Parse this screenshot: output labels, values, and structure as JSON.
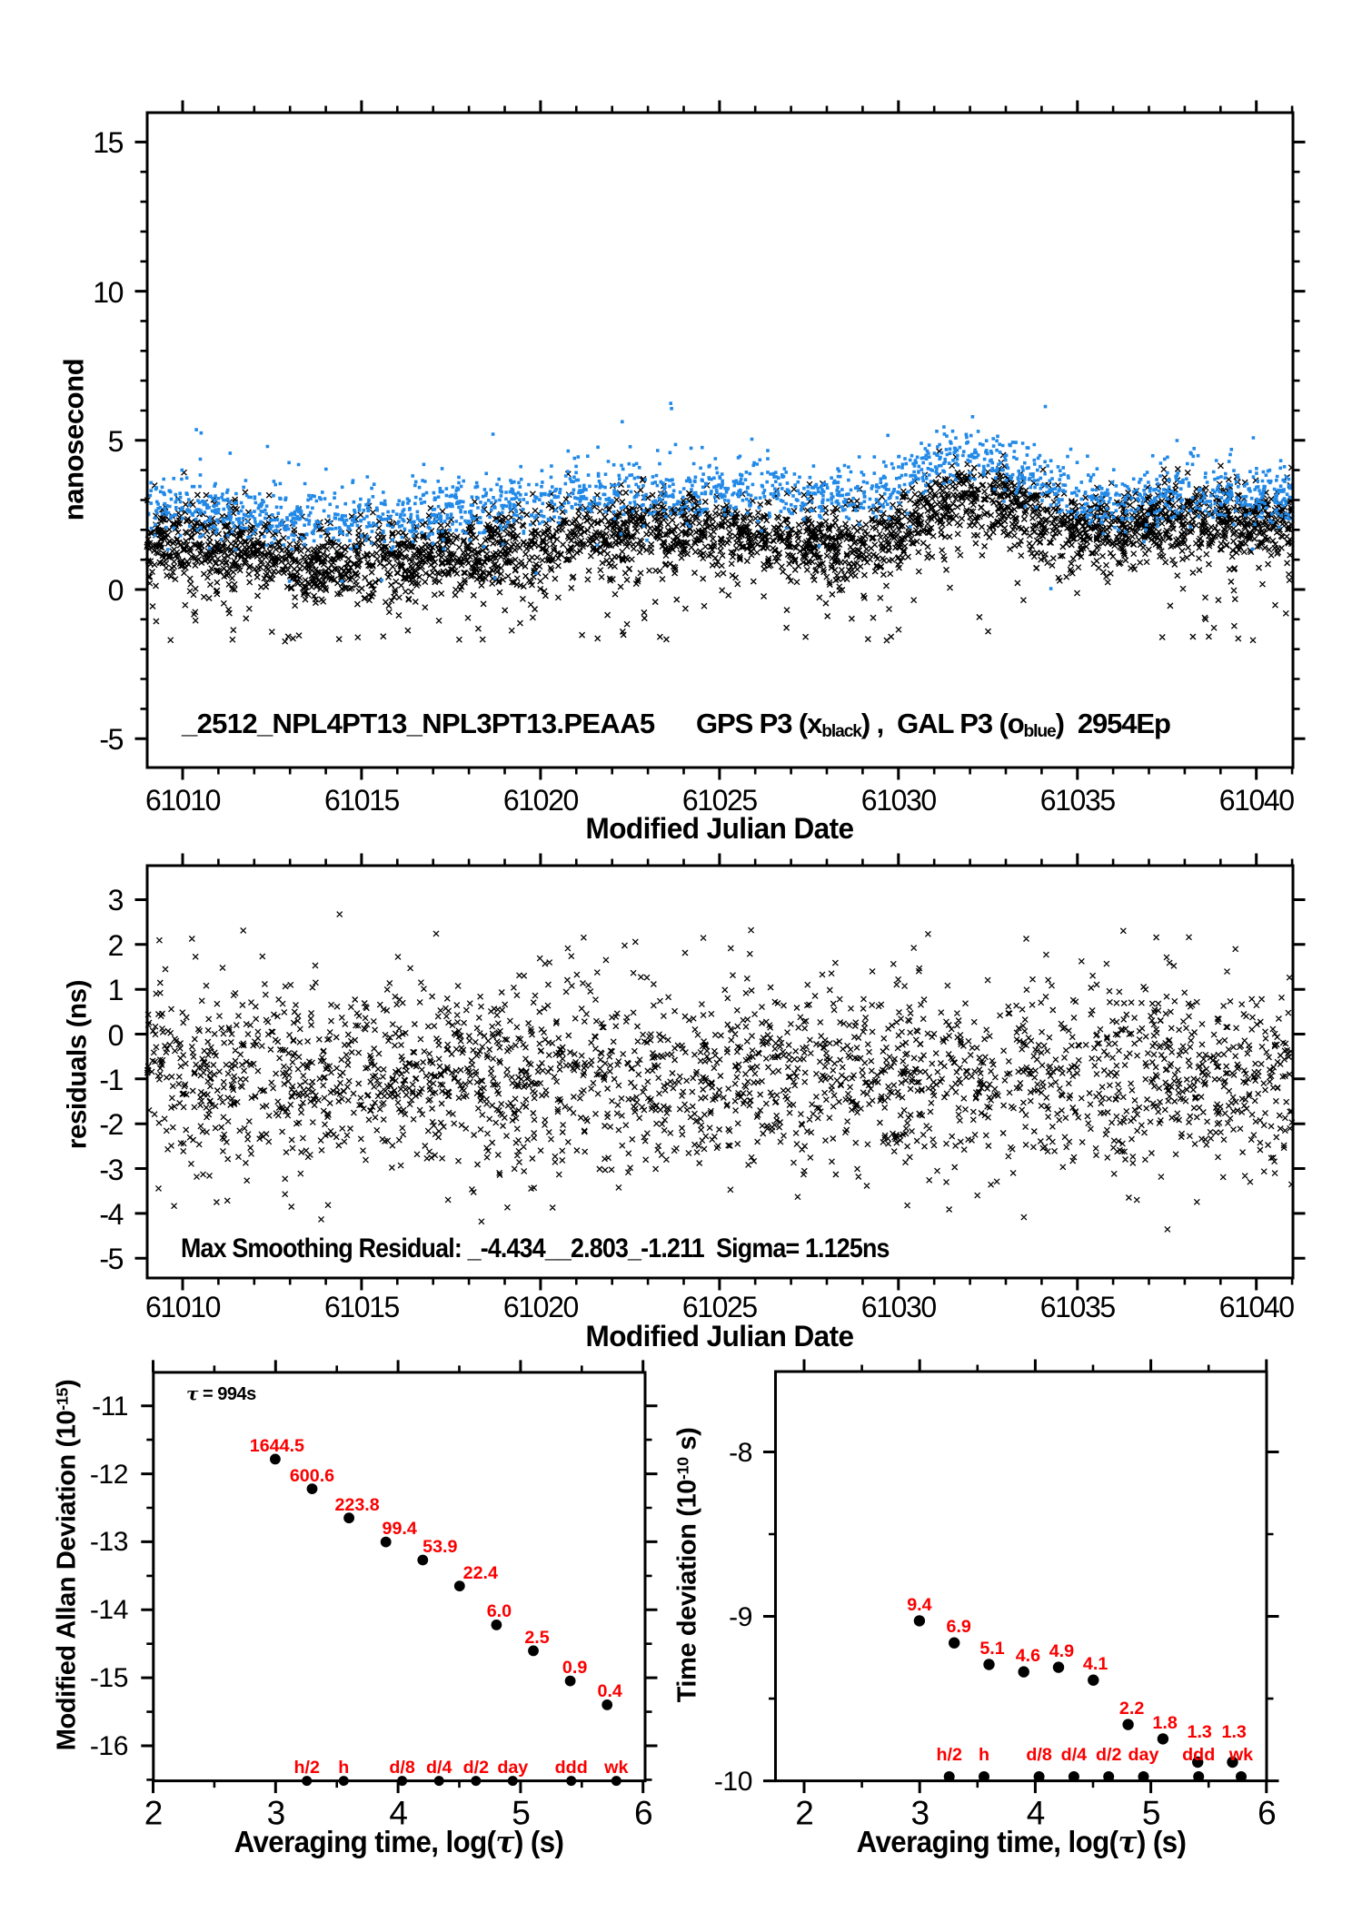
{
  "figure": {
    "background": "#ffffff",
    "axis_color": "#000000",
    "marker_black": "#000000",
    "marker_blue": "#2189e8",
    "label_red": "#fa0000"
  },
  "top_panel": {
    "ylabel": "nanosecond",
    "xlabel": "Modified Julian Date",
    "title_file": "_2512_NPL4PT13_NPL3PT13.PEAA5",
    "legend_segments": [
      {
        "t": "GPS P3 (x"
      },
      {
        "t": "black",
        "sub": true
      },
      {
        "t": ") ,  GAL P3 (o"
      },
      {
        "t": "blue",
        "sub": true
      },
      {
        "t": ")  2954Ep"
      }
    ],
    "x_tick_labels": [
      "61010",
      "61015",
      "61020",
      "61025",
      "61030",
      "61035",
      "61040"
    ],
    "y_tick_labels": [
      "15",
      "10",
      "5",
      "0",
      "-5"
    ]
  },
  "residual_panel": {
    "ylabel": "residuals (ns)",
    "xlabel": "Modified Julian Date",
    "annotation": "Max Smoothing Residual: _-4.434__2.803_-1.211  Sigma= 1.125ns",
    "x_tick_labels": [
      "61010",
      "61015",
      "61020",
      "61025",
      "61030",
      "61035",
      "61040"
    ],
    "y_tick_labels": [
      "3",
      "2",
      "1",
      "0",
      "-1",
      "-2",
      "-3",
      "-4",
      "-5"
    ]
  },
  "mdev_panel": {
    "ylabel_segments": [
      {
        "t": "Modified Allan Deviation (10"
      },
      {
        "t": "-15",
        "sup": true
      },
      {
        "t": ")"
      }
    ],
    "xlabel": "Averaging time, log(τ) (s)",
    "annotation": "τ = 994s",
    "x_tick_labels": [
      "2",
      "3",
      "4",
      "5",
      "6"
    ],
    "y_tick_labels": [
      "-11",
      "-12",
      "-13",
      "-14",
      "-15",
      "-16"
    ]
  },
  "tdev_panel": {
    "ylabel_segments": [
      {
        "t": "Time deviation (10"
      },
      {
        "t": "-10",
        "sup": true
      },
      {
        "t": " s)"
      }
    ],
    "xlabel": "Averaging time, log(τ) (s)",
    "x_tick_labels": [
      "2",
      "3",
      "4",
      "5",
      "6"
    ],
    "y_tick_labels": [
      "-8",
      "-9",
      "-10"
    ]
  },
  "chart_data": [
    {
      "id": "gnss-link-time-series",
      "type": "scatter",
      "title": "_2512_NPL4PT13_NPL3PT13.PEAA5   GPS P3 (x black) , GAL P3 (o blue) 2954Ep",
      "xlabel": "Modified Julian Date",
      "ylabel": "nanosecond",
      "xlim": [
        61009,
        61041
      ],
      "ylim": [
        -6,
        16
      ],
      "x_major_ticks": [
        61010,
        61015,
        61020,
        61025,
        61030,
        61035,
        61040
      ],
      "x_minor_step": 1,
      "y_major_ticks": [
        -5,
        0,
        5,
        10,
        15
      ],
      "y_minor_step": 1,
      "grid": false,
      "series": [
        {
          "name": "GPS P3",
          "marker": "x",
          "color": "#000000",
          "count": 3600,
          "seed": 20101,
          "trend_x_start": 61009,
          "trend_x_step": 1,
          "trend_y": [
            1.6,
            1.7,
            1.55,
            1.35,
            1.1,
            0.95,
            1.0,
            1.05,
            1.1,
            1.2,
            1.35,
            1.6,
            1.8,
            1.95,
            2.05,
            2.1,
            1.95,
            1.85,
            1.8,
            1.6,
            1.55,
            1.9,
            2.7,
            3.25,
            2.9,
            2.25,
            2.05,
            2.1,
            2.3,
            2.4,
            2.35,
            2.3,
            2.4
          ],
          "sigma": 0.6,
          "epoch_sigma": 0.2,
          "low_tail_prob": 0.2,
          "low_tail_scale": 0.85,
          "up_tail_prob": 0.03,
          "up_tail_scale": 0.5,
          "ymin_clip": -1.75,
          "ymax_clip": 6.1
        },
        {
          "name": "GAL P3",
          "marker": "o",
          "color": "#2189e8",
          "count": 2000,
          "seed": 30303,
          "trend_x_start": 61009,
          "trend_x_step": 1,
          "trend_y": [
            2.85,
            2.8,
            2.65,
            2.45,
            2.25,
            2.2,
            2.3,
            2.4,
            2.55,
            2.7,
            2.85,
            3.0,
            3.1,
            3.2,
            3.3,
            3.3,
            3.35,
            3.4,
            3.3,
            3.15,
            3.05,
            3.5,
            4.3,
            4.75,
            4.2,
            3.6,
            3.15,
            2.95,
            3.1,
            3.3,
            3.35,
            3.2,
            3.15
          ],
          "sigma": 0.45,
          "epoch_sigma": 0.18,
          "low_tail_prob": 0.06,
          "low_tail_scale": 0.5,
          "up_tail_prob": 0.14,
          "up_tail_scale": 0.55,
          "ymin_clip": -0.5,
          "ymax_clip": 6.25
        }
      ]
    },
    {
      "id": "smoothing-residuals",
      "type": "scatter",
      "title": "",
      "xlabel": "Modified Julian Date",
      "ylabel": "residuals (ns)",
      "xlim": [
        61009,
        61041
      ],
      "ylim": [
        -5.44,
        3.77
      ],
      "x_major_ticks": [
        61010,
        61015,
        61020,
        61025,
        61030,
        61035,
        61040
      ],
      "x_minor_step": 1,
      "y_major_ticks": [
        -5,
        -4,
        -3,
        -2,
        -1,
        0,
        1,
        2,
        3
      ],
      "grid": false,
      "stats": {
        "max_smoothing_residual": [
          -4.434,
          2.803,
          -1.211
        ],
        "sigma_ns": 1.125
      },
      "series": [
        {
          "name": "residuals",
          "marker": "x",
          "color": "#000000",
          "count": 2400,
          "seed": 40707,
          "mean": -0.95,
          "sigma": 1.06,
          "epoch_sigma": 0.18,
          "ymin_clip": -4.434,
          "ymax_clip": 2.803
        }
      ]
    },
    {
      "id": "modified-allan-deviation",
      "type": "scatter",
      "title": "",
      "xlabel": "Averaging time, log(τ) (s)",
      "ylabel": "Modified Allan Deviation (10^-15)",
      "xlim": [
        1.99,
        6.02
      ],
      "ylim": [
        -16.52,
        -10.51
      ],
      "x_major_ticks": [
        2,
        3,
        4,
        5,
        6
      ],
      "x_minor_step": 0.5,
      "y_major_ticks": [
        -16,
        -15,
        -14,
        -13,
        -12,
        -11
      ],
      "y_minor_step": 0.5,
      "annotation": "τ = 994s",
      "tau_base_seconds": 994,
      "log_tau": [
        2.99739,
        3.29842,
        3.59945,
        3.90048,
        4.20151,
        4.50254,
        4.80357,
        5.1046,
        5.40563,
        5.70666
      ],
      "mdev_1e-15": [
        1644.5,
        600.6,
        223.8,
        99.4,
        53.9,
        22.4,
        6.0,
        2.5,
        0.9,
        0.4
      ],
      "point_labels": [
        "1644.5",
        "600.6",
        "223.8",
        "99.4",
        "53.9",
        "22.4",
        "6.0",
        "2.5",
        "0.9",
        "0.4"
      ],
      "log10_values": [
        -11.784,
        -12.2214,
        -12.6501,
        -13.0026,
        -13.2684,
        -13.6498,
        -14.2218,
        -14.6021,
        -15.0458,
        -15.3979
      ],
      "label_dx": [
        2,
        0,
        9,
        15,
        19,
        23,
        3,
        4,
        5,
        3
      ],
      "label_dy": [
        -7,
        -7,
        -7,
        -7,
        -7,
        -7,
        -7,
        -7,
        -7,
        -7
      ],
      "tau_marks": {
        "labels": [
          "h/2",
          "h",
          "d/8",
          "d/4",
          "d/2",
          "day",
          "ddd",
          "wk"
        ],
        "log_tau": [
          3.2553,
          3.5563,
          4.0334,
          4.3345,
          4.6355,
          4.9365,
          5.4136,
          5.7816
        ]
      }
    },
    {
      "id": "time-deviation",
      "type": "scatter",
      "title": "",
      "xlabel": "Averaging time, log(τ) (s)",
      "ylabel": "Time deviation (10^-10 s)",
      "xlim": [
        1.76,
        6.0
      ],
      "ylim": [
        -10.0,
        -7.51
      ],
      "x_major_ticks": [
        2,
        3,
        4,
        5,
        6
      ],
      "x_minor_step": 0.5,
      "y_major_ticks": [
        -10,
        -9,
        -8
      ],
      "y_minor_step": 0.5,
      "log_tau": [
        2.99739,
        3.29842,
        3.59945,
        3.90048,
        4.20151,
        4.50254,
        4.80357,
        5.1046,
        5.40563,
        5.70666
      ],
      "tdev_1e-10": [
        9.4,
        6.9,
        5.1,
        4.6,
        4.9,
        4.1,
        2.2,
        1.8,
        1.3,
        1.3
      ],
      "point_labels": [
        "9.4",
        "6.9",
        "5.1",
        "4.6",
        "4.9",
        "4.1",
        "2.2",
        "1.8",
        "1.3",
        "1.3"
      ],
      "log10_values": [
        -9.0269,
        -9.1612,
        -9.2924,
        -9.3372,
        -9.3098,
        -9.3872,
        -9.6576,
        -9.7447,
        -9.8861,
        -9.8861
      ],
      "label_dx": [
        0,
        5,
        3.5,
        4.7,
        3.4,
        2.3,
        4,
        2.2,
        2,
        1.7
      ],
      "label_dy": [
        -10,
        -10,
        -10,
        -10,
        -10,
        -10,
        -10,
        -10,
        -26,
        -26
      ],
      "tau_marks": {
        "labels": [
          "h/2",
          "h",
          "d/8",
          "d/4",
          "d/2",
          "day",
          "ddd",
          "wk"
        ],
        "log_tau": [
          3.2553,
          3.5563,
          4.0334,
          4.3345,
          4.6355,
          4.9365,
          5.4136,
          5.7816
        ]
      }
    }
  ]
}
